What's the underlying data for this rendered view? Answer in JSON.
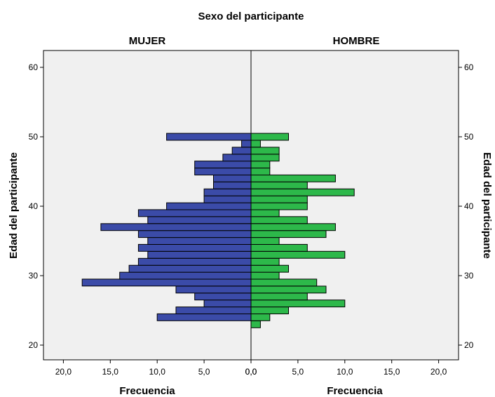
{
  "chart_data": {
    "type": "bar",
    "orientation": "horizontal",
    "layout": "population-pyramid",
    "title": "Sexo del participante",
    "ylabel_left": "Edad del participante",
    "ylabel_right": "Edad del participante",
    "panels": [
      {
        "name": "MUJER",
        "xlabel": "Frecuencia",
        "direction": "left",
        "xlim": [
          0,
          22
        ],
        "xticks": [
          "20,0",
          "15,0",
          "10,0",
          "5,0",
          "0,0"
        ],
        "color": "#3B4BA8"
      },
      {
        "name": "HOMBRE",
        "xlabel": "Frecuencia",
        "direction": "right",
        "xlim": [
          0,
          22
        ],
        "xticks": [
          "0,0",
          "5,0",
          "10,0",
          "15,0",
          "20,0"
        ],
        "color": "#2DB84A"
      }
    ],
    "ylim": [
      18,
      62
    ],
    "yticks": [
      "20",
      "30",
      "40",
      "50",
      "60"
    ],
    "ages": [
      23,
      24,
      25,
      26,
      27,
      28,
      29,
      30,
      31,
      32,
      33,
      34,
      35,
      36,
      37,
      38,
      39,
      40,
      41,
      42,
      43,
      44,
      45,
      46,
      47,
      48,
      49,
      50
    ],
    "series": [
      {
        "name": "MUJER",
        "values": [
          0,
          10,
          8,
          5,
          6,
          8,
          18,
          14,
          13,
          12,
          11,
          12,
          11,
          12,
          16,
          11,
          12,
          9,
          5,
          5,
          4,
          4,
          6,
          6,
          3,
          2,
          1,
          9
        ]
      },
      {
        "name": "HOMBRE",
        "values": [
          1,
          2,
          4,
          10,
          6,
          8,
          7,
          3,
          4,
          3,
          10,
          6,
          3,
          8,
          9,
          6,
          3,
          6,
          6,
          11,
          6,
          9,
          2,
          2,
          3,
          3,
          1,
          4
        ]
      }
    ],
    "grid": false,
    "background": "#F0F0F0",
    "edge_color": "#000000"
  }
}
